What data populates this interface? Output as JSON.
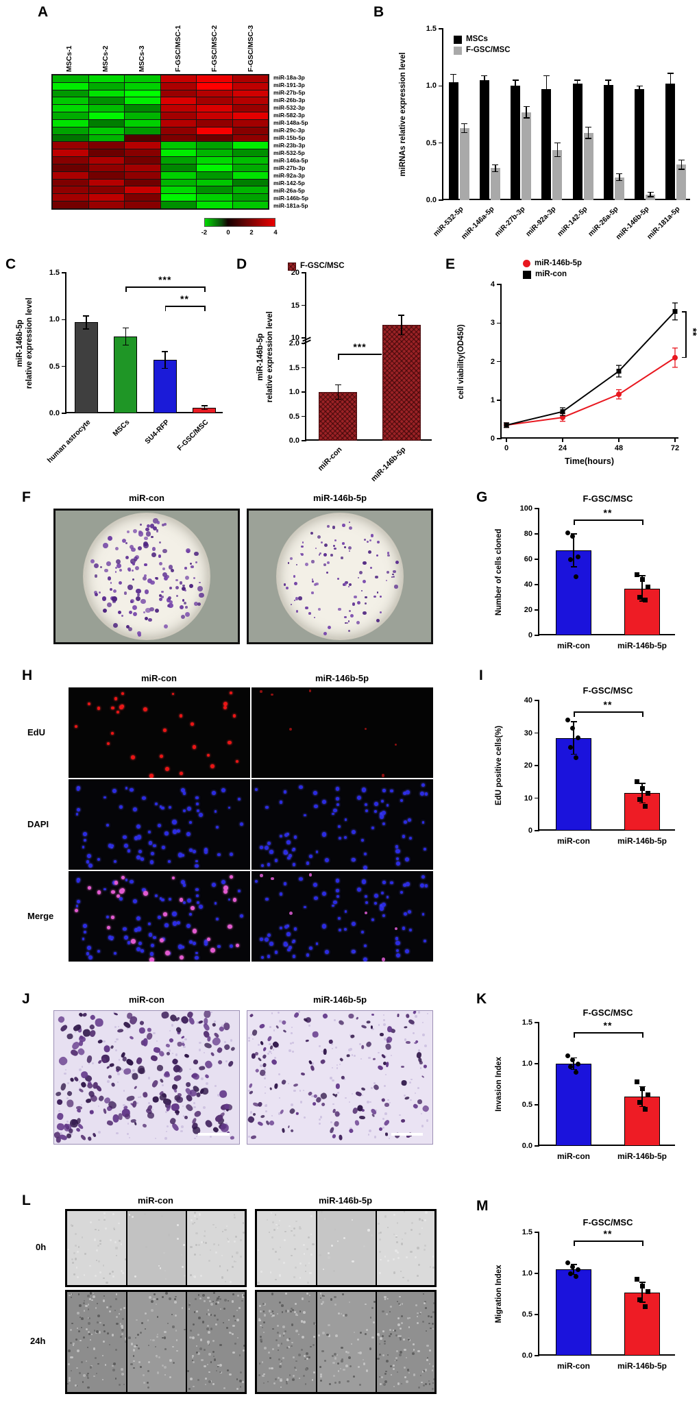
{
  "panel_labels": {
    "A": "A",
    "B": "B",
    "C": "C",
    "D": "D",
    "E": "E",
    "F": "F",
    "G": "G",
    "H": "H",
    "I": "I",
    "J": "J",
    "K": "K",
    "L": "L",
    "M": "M"
  },
  "photos": {
    "F": {
      "titles": [
        "miR-con",
        "miR-146b-5p"
      ]
    },
    "H": {
      "col_titles": [
        "miR-con",
        "miR-146b-5p"
      ],
      "row_titles": [
        "EdU",
        "DAPI",
        "Merge"
      ]
    },
    "J": {
      "titles": [
        "miR-con",
        "miR-146b-5p"
      ]
    },
    "L": {
      "col_titles": [
        "miR-con",
        "miR-146b-5p"
      ],
      "row_titles": [
        "0h",
        "24h"
      ]
    }
  },
  "chart_data": [
    {
      "id": "A",
      "type": "heatmap",
      "columns": [
        "MSCs-1",
        "MSCs-2",
        "MSCs-3",
        "F-GSC/MSC-1",
        "F-GSC/MSC-2",
        "F-GSC/MSC-3"
      ],
      "rows": [
        "miR-18a-3p",
        "miR-191-3p",
        "miR-27b-5p",
        "miR-26b-3p",
        "miR-532-3p",
        "miR-582-3p",
        "miR-148a-5p",
        "miR-29c-3p",
        "miR-15b-5p",
        "miR-23b-3p",
        "miR-532-5p",
        "miR-146a-5p",
        "miR-27b-3p",
        "miR-92a-3p",
        "miR-142-5p",
        "miR-26a-5p",
        "miR-146b-5p",
        "miR-181a-5p"
      ],
      "matrix": [
        [
          -1.2,
          -1.6,
          -1.4,
          2.8,
          3.6,
          2.2
        ],
        [
          -1.8,
          -1.1,
          -1.5,
          2.2,
          4.0,
          2.6
        ],
        [
          -0.9,
          -1.7,
          -2.0,
          1.8,
          2.4,
          3.0
        ],
        [
          -1.4,
          -0.8,
          -1.8,
          3.2,
          2.0,
          2.4
        ],
        [
          -1.6,
          -1.3,
          -0.7,
          2.6,
          3.2,
          1.8
        ],
        [
          -1.1,
          -1.9,
          -1.2,
          2.0,
          2.8,
          3.4
        ],
        [
          -1.7,
          -0.6,
          -1.5,
          2.4,
          1.6,
          2.0
        ],
        [
          -1.0,
          -1.4,
          -0.9,
          1.6,
          3.8,
          1.4
        ],
        [
          -0.5,
          -1.2,
          0.3,
          1.2,
          0.8,
          1.6
        ],
        [
          1.8,
          1.2,
          2.4,
          -1.4,
          -1.0,
          -1.8
        ],
        [
          2.6,
          0.8,
          1.4,
          -1.8,
          -1.2,
          -0.8
        ],
        [
          1.4,
          2.2,
          1.0,
          -1.0,
          -1.6,
          -1.3
        ],
        [
          0.8,
          1.6,
          2.0,
          -0.7,
          -1.9,
          -1.1
        ],
        [
          2.2,
          1.0,
          1.6,
          -1.5,
          -0.9,
          -1.7
        ],
        [
          1.2,
          2.4,
          0.9,
          -1.2,
          -1.4,
          -0.6
        ],
        [
          1.6,
          1.4,
          2.8,
          -1.6,
          -0.8,
          -1.2
        ],
        [
          2.0,
          2.6,
          1.2,
          -1.9,
          -1.5,
          -1.0
        ],
        [
          1.0,
          1.8,
          1.4,
          -0.8,
          -1.7,
          -1.4
        ]
      ],
      "colorbar_ticks": [
        "-2",
        "0",
        "2",
        "4"
      ]
    },
    {
      "id": "B",
      "type": "bar",
      "categories": [
        "miR-532-5p",
        "miR-146a-5p",
        "miR-27b-3p",
        "miR-92a-3p",
        "miR-142-5p",
        "miR-26a-5p",
        "miR-146b-5p",
        "miR-181a-5p"
      ],
      "series": [
        {
          "name": "MSCs",
          "color": "#000000",
          "values": [
            1.03,
            1.05,
            1.0,
            0.97,
            1.02,
            1.01,
            0.97,
            1.02
          ],
          "errors": [
            0.07,
            0.04,
            0.05,
            0.12,
            0.03,
            0.04,
            0.03,
            0.09
          ]
        },
        {
          "name": "F-GSC/MSC",
          "color": "#a9a9a9",
          "values": [
            0.63,
            0.28,
            0.77,
            0.44,
            0.59,
            0.2,
            0.05,
            0.31
          ],
          "errors": [
            0.04,
            0.03,
            0.05,
            0.06,
            0.05,
            0.03,
            0.02,
            0.04
          ]
        }
      ],
      "ylabel": "miRNAs relative expression level",
      "ylim": [
        0,
        1.5
      ],
      "yticks": [
        0,
        0.5,
        1,
        1.5
      ],
      "ydec": 1
    },
    {
      "id": "C",
      "type": "bar",
      "categories": [
        "human astrocyte",
        "MSCs",
        "SU4-RFP",
        "F-GSC/MSC"
      ],
      "values": [
        0.97,
        0.82,
        0.57,
        0.06
      ],
      "errors": [
        0.07,
        0.09,
        0.09,
        0.02
      ],
      "colors": [
        "#3f3f3f",
        "#1f9626",
        "#1b1bd8",
        "#ea1c24"
      ],
      "ylabel": [
        "miR-146b-5p",
        "relative expression level"
      ],
      "ylim": [
        0,
        1.5
      ],
      "yticks": [
        0,
        0.5,
        1,
        1.5
      ],
      "ydec": 1,
      "sig": [
        {
          "a": 1,
          "b": 3,
          "label": "***"
        },
        {
          "a": 2,
          "b": 3,
          "label": "**"
        }
      ]
    },
    {
      "id": "D",
      "type": "bar-broken-axis",
      "legend": [
        {
          "label": "F-GSC/MSC",
          "color": "#9b2226",
          "hatch": true
        }
      ],
      "categories": [
        "miR-con",
        "miR-146b-5p"
      ],
      "values": [
        1.0,
        12.0
      ],
      "errors": [
        0.15,
        1.5
      ],
      "ylabel": [
        "miR-146b-5p",
        "relative expression level"
      ],
      "yticks_upper": [
        20,
        15,
        10
      ],
      "yticks_lower": [
        2.0,
        1.5,
        1.0,
        0.5,
        0.0
      ],
      "ylim_lower": [
        0,
        2
      ],
      "ylim_upper": [
        10,
        20
      ],
      "sig": [
        {
          "a": 0,
          "b": 1,
          "label": "***"
        }
      ]
    },
    {
      "id": "E",
      "type": "line",
      "x": [
        0,
        24,
        48,
        72
      ],
      "series": [
        {
          "name": "miR-146b-5p",
          "color": "#e8171f",
          "marker": "circle",
          "values": [
            0.35,
            0.55,
            1.15,
            2.1
          ],
          "errors": [
            0.06,
            0.1,
            0.12,
            0.25
          ]
        },
        {
          "name": "miR-con",
          "color": "#000000",
          "marker": "square",
          "values": [
            0.35,
            0.7,
            1.75,
            3.3
          ],
          "errors": [
            0.06,
            0.1,
            0.15,
            0.22
          ]
        }
      ],
      "xlabel": "Time(hours)",
      "ylabel": "cell viability(OD450)",
      "ylim": [
        0,
        4
      ],
      "yticks": [
        0,
        1,
        2,
        3,
        4
      ],
      "sig": "**"
    },
    {
      "id": "G",
      "type": "bar",
      "title": "F-GSC/MSC",
      "categories": [
        "miR-con",
        "miR-146b-5p"
      ],
      "values": [
        67,
        37
      ],
      "errors": [
        13,
        10
      ],
      "colors": [
        "#1b13dc",
        "#ee1c25"
      ],
      "points": [
        [
          81,
          78,
          62,
          60,
          46
        ],
        [
          48,
          44,
          38,
          30,
          28
        ]
      ],
      "ylabel": "Number of cells cloned",
      "ylim": [
        0,
        100
      ],
      "yticks": [
        0,
        20,
        40,
        60,
        80,
        100
      ],
      "ydec": 0,
      "sig": [
        {
          "a": 0,
          "b": 1,
          "label": "**"
        }
      ]
    },
    {
      "id": "I",
      "type": "bar",
      "title": "F-GSC/MSC",
      "categories": [
        "miR-con",
        "miR-146b-5p"
      ],
      "values": [
        28.5,
        11.5
      ],
      "errors": [
        5,
        3
      ],
      "colors": [
        "#1b13dc",
        "#ee1c25"
      ],
      "points": [
        [
          34,
          31.5,
          28.5,
          25.5,
          22.5
        ],
        [
          15,
          13,
          11.5,
          9.5,
          7.5
        ]
      ],
      "ylabel": "EdU positive cells(%)",
      "ylim": [
        0,
        40
      ],
      "yticks": [
        0,
        10,
        20,
        30,
        40
      ],
      "ydec": 0,
      "sig": [
        {
          "a": 0,
          "b": 1,
          "label": "**"
        }
      ]
    },
    {
      "id": "K",
      "type": "bar",
      "title": "F-GSC/MSC",
      "categories": [
        "miR-con",
        "miR-146b-5p"
      ],
      "values": [
        1.0,
        0.6
      ],
      "errors": [
        0.07,
        0.12
      ],
      "colors": [
        "#1b13dc",
        "#ee1c25"
      ],
      "points": [
        [
          1.1,
          1.05,
          1.0,
          0.96,
          0.9
        ],
        [
          0.78,
          0.7,
          0.62,
          0.53,
          0.45
        ]
      ],
      "ylabel": "Invasion Index",
      "ylim": [
        0,
        1.5
      ],
      "yticks": [
        0,
        0.5,
        1,
        1.5
      ],
      "ydec": 1,
      "sig": [
        {
          "a": 0,
          "b": 1,
          "label": "**"
        }
      ]
    },
    {
      "id": "M",
      "type": "bar",
      "title": "F-GSC/MSC",
      "categories": [
        "miR-con",
        "miR-146b-5p"
      ],
      "values": [
        1.05,
        0.77
      ],
      "errors": [
        0.06,
        0.12
      ],
      "colors": [
        "#1b13dc",
        "#ee1c25"
      ],
      "points": [
        [
          1.13,
          1.08,
          1.05,
          1.0,
          0.96
        ],
        [
          0.93,
          0.85,
          0.78,
          0.68,
          0.6
        ]
      ],
      "ylabel": "Migration Index",
      "ylim": [
        0,
        1.5
      ],
      "yticks": [
        0,
        0.5,
        1,
        1.5
      ],
      "ydec": 1,
      "sig": [
        {
          "a": 0,
          "b": 1,
          "label": "**"
        }
      ]
    }
  ]
}
